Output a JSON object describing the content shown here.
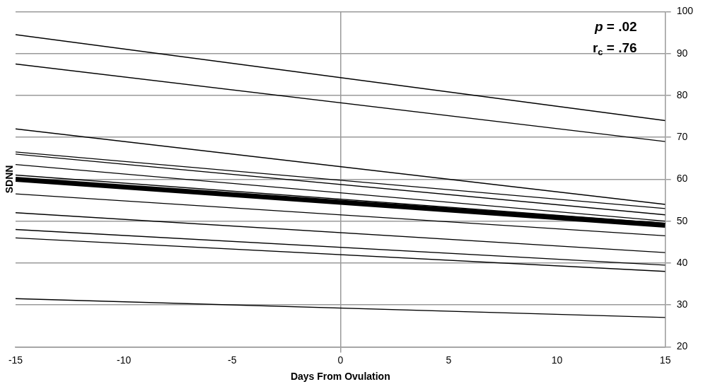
{
  "chart_data": {
    "type": "line",
    "x_label": "Days From Ovulation",
    "y_label": "SDNN",
    "annotations": [
      "p = .02",
      "rc = .76"
    ],
    "x": [
      -15,
      15
    ],
    "xlim": [
      -15,
      15
    ],
    "xticks": [
      -15,
      -10,
      -5,
      0,
      5,
      10,
      15
    ],
    "ylim": [
      20,
      100
    ],
    "yticks": [
      20,
      30,
      40,
      50,
      60,
      70,
      80,
      90,
      100
    ],
    "grid": true,
    "series": [
      {
        "color": "#000000",
        "line_style": "solid",
        "values": [
          94.5,
          74
        ]
      },
      {
        "color": "#000000",
        "line_style": "solid",
        "values": [
          87.5,
          69
        ]
      },
      {
        "color": "#000000",
        "line_style": "solid",
        "values": [
          72,
          54
        ]
      },
      {
        "color": "#000000",
        "line_style": "solid",
        "values": [
          66.5,
          53
        ]
      },
      {
        "color": "#000000",
        "line_style": "solid",
        "values": [
          66,
          51.5
        ]
      },
      {
        "color": "#000000",
        "line_style": "solid",
        "values": [
          63.5,
          50
        ]
      },
      {
        "color": "#000000",
        "line_style": "solid",
        "values": [
          61,
          49.5
        ]
      },
      {
        "color": "#000000",
        "line_style": "solid",
        "values": [
          56.5,
          46.5
        ]
      },
      {
        "color": "#000000",
        "line_style": "solid",
        "values": [
          52,
          42.5
        ]
      },
      {
        "color": "#000000",
        "line_style": "solid",
        "values": [
          48,
          39.5
        ]
      },
      {
        "color": "#000000",
        "line_style": "solid",
        "values": [
          46,
          38
        ]
      },
      {
        "color": "#000000",
        "line_style": "solid",
        "values": [
          31.5,
          27
        ]
      },
      {
        "color": "#000000",
        "line_style": "thick",
        "values": [
          60,
          49
        ]
      }
    ]
  }
}
